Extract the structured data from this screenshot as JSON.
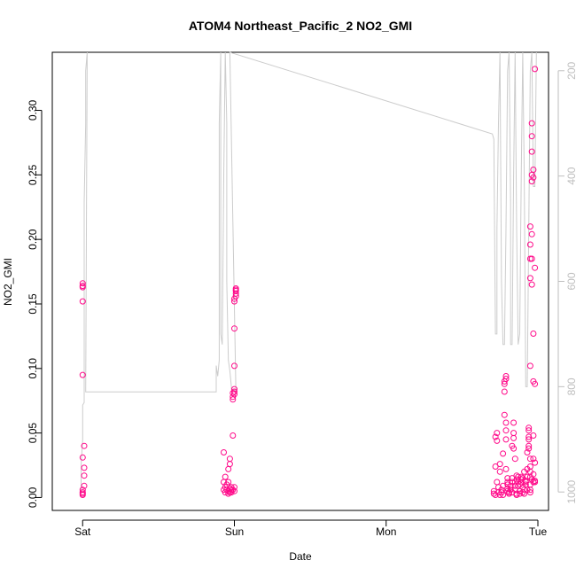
{
  "chart_data": {
    "type": "scatter",
    "title": "ATOM4 Northeast_Pacific_2 NO2_GMI",
    "xlabel": "Date",
    "ylabel": "NO2_GMI",
    "x_ticks": [
      "Sat",
      "Sun",
      "Mon",
      "Tue"
    ],
    "x_range_days": [
      -0.2,
      3.07
    ],
    "y_left": {
      "range": [
        -0.01,
        0.345
      ],
      "ticks": [
        "0.00",
        "0.05",
        "0.10",
        "0.15",
        "0.20",
        "0.25",
        "0.30"
      ]
    },
    "y_right": {
      "range": [
        1035,
        165
      ],
      "reversed": true,
      "ticks": [
        "200",
        "400",
        "600",
        "800",
        "1000"
      ]
    },
    "grid": false,
    "colors": {
      "points": "#ff0a8a",
      "secondary_line": "#cccccc",
      "axis": "#000000",
      "right_axis": "#bebebe"
    },
    "series": [
      {
        "type": "scatter",
        "axis": "left",
        "points": [
          [
            0.0,
            0.166
          ],
          [
            0.0,
            0.164
          ],
          [
            0.0,
            0.163
          ],
          [
            0.0,
            0.152
          ],
          [
            0.0,
            0.095
          ],
          [
            0.01,
            0.04
          ],
          [
            0.0,
            0.031
          ],
          [
            0.01,
            0.023
          ],
          [
            0.01,
            0.017
          ],
          [
            0.01,
            0.009
          ],
          [
            0.0,
            0.006
          ],
          [
            0.0,
            0.004
          ],
          [
            0.0,
            0.003
          ],
          [
            0.0,
            0.002
          ],
          [
            0.93,
            0.035
          ],
          [
            0.94,
            0.016
          ],
          [
            0.93,
            0.012
          ],
          [
            0.94,
            0.008
          ],
          [
            0.93,
            0.006
          ],
          [
            0.94,
            0.004
          ],
          [
            0.95,
            0.01
          ],
          [
            0.95,
            0.006
          ],
          [
            0.96,
            0.003
          ],
          [
            0.96,
            0.012
          ],
          [
            0.96,
            0.022
          ],
          [
            0.97,
            0.026
          ],
          [
            0.97,
            0.03
          ],
          [
            0.97,
            0.004
          ],
          [
            0.98,
            0.008
          ],
          [
            0.98,
            0.006
          ],
          [
            0.99,
            0.048
          ],
          [
            0.99,
            0.076
          ],
          [
            0.99,
            0.078
          ],
          [
            0.99,
            0.081
          ],
          [
            1.0,
            0.08
          ],
          [
            1.0,
            0.082
          ],
          [
            1.0,
            0.084
          ],
          [
            1.0,
            0.102
          ],
          [
            1.0,
            0.131
          ],
          [
            1.0,
            0.152
          ],
          [
            1.0,
            0.154
          ],
          [
            1.01,
            0.156
          ],
          [
            1.01,
            0.158
          ],
          [
            1.01,
            0.16
          ],
          [
            1.01,
            0.161
          ],
          [
            1.01,
            0.162
          ],
          [
            1.0,
            0.008
          ],
          [
            1.0,
            0.005
          ],
          [
            0.99,
            0.006
          ],
          [
            0.98,
            0.004
          ],
          [
            0.97,
            0.007
          ],
          [
            0.96,
            0.005
          ],
          [
            2.71,
            0.005
          ],
          [
            2.71,
            0.003
          ],
          [
            2.72,
            0.002
          ],
          [
            2.72,
            0.024
          ],
          [
            2.72,
            0.047
          ],
          [
            2.73,
            0.05
          ],
          [
            2.73,
            0.044
          ],
          [
            2.73,
            0.012
          ],
          [
            2.74,
            0.008
          ],
          [
            2.74,
            0.004
          ],
          [
            2.75,
            0.002
          ],
          [
            2.75,
            0.026
          ],
          [
            2.75,
            0.02
          ],
          [
            2.76,
            0.004
          ],
          [
            2.76,
            0.006
          ],
          [
            2.77,
            0.009
          ],
          [
            2.77,
            0.002
          ],
          [
            2.77,
            0.034
          ],
          [
            2.78,
            0.09
          ],
          [
            2.78,
            0.088
          ],
          [
            2.78,
            0.082
          ],
          [
            2.78,
            0.064
          ],
          [
            2.79,
            0.092
          ],
          [
            2.79,
            0.094
          ],
          [
            2.79,
            0.058
          ],
          [
            2.79,
            0.052
          ],
          [
            2.79,
            0.045
          ],
          [
            2.79,
            0.022
          ],
          [
            2.8,
            0.015
          ],
          [
            2.8,
            0.012
          ],
          [
            2.8,
            0.01
          ],
          [
            2.8,
            0.007
          ],
          [
            2.8,
            0.005
          ],
          [
            2.81,
            0.004
          ],
          [
            2.81,
            0.003
          ],
          [
            2.82,
            0.009
          ],
          [
            2.82,
            0.006
          ],
          [
            2.83,
            0.004
          ],
          [
            2.83,
            0.012
          ],
          [
            2.83,
            0.015
          ],
          [
            2.83,
            0.04
          ],
          [
            2.84,
            0.05
          ],
          [
            2.84,
            0.058
          ],
          [
            2.84,
            0.046
          ],
          [
            2.84,
            0.038
          ],
          [
            2.85,
            0.03
          ],
          [
            2.85,
            0.012
          ],
          [
            2.85,
            0.009
          ],
          [
            2.85,
            0.006
          ],
          [
            2.86,
            0.003
          ],
          [
            2.86,
            0.002
          ],
          [
            2.86,
            0.014
          ],
          [
            2.86,
            0.017
          ],
          [
            2.87,
            0.016
          ],
          [
            2.87,
            0.012
          ],
          [
            2.87,
            0.009
          ],
          [
            2.88,
            0.005
          ],
          [
            2.88,
            0.003
          ],
          [
            2.88,
            0.01
          ],
          [
            2.89,
            0.014
          ],
          [
            2.89,
            0.016
          ],
          [
            2.89,
            0.012
          ],
          [
            2.9,
            0.008
          ],
          [
            2.9,
            0.004
          ],
          [
            2.9,
            0.015
          ],
          [
            2.91,
            0.02
          ],
          [
            2.91,
            0.006
          ],
          [
            2.91,
            0.003
          ],
          [
            2.92,
            0.012
          ],
          [
            2.92,
            0.013
          ],
          [
            2.92,
            0.01
          ],
          [
            2.93,
            0.006
          ],
          [
            2.93,
            0.016
          ],
          [
            2.93,
            0.022
          ],
          [
            2.93,
            0.035
          ],
          [
            2.94,
            0.045
          ],
          [
            2.94,
            0.047
          ],
          [
            2.94,
            0.04
          ],
          [
            2.94,
            0.038
          ],
          [
            2.94,
            0.052
          ],
          [
            2.94,
            0.054
          ],
          [
            2.95,
            0.03
          ],
          [
            2.95,
            0.024
          ],
          [
            2.95,
            0.02
          ],
          [
            2.95,
            0.016
          ],
          [
            2.95,
            0.01
          ],
          [
            2.95,
            0.006
          ],
          [
            2.95,
            0.004
          ],
          [
            2.95,
            0.102
          ],
          [
            2.95,
            0.17
          ],
          [
            2.95,
            0.185
          ],
          [
            2.95,
            0.21
          ],
          [
            2.95,
            0.196
          ],
          [
            2.96,
            0.29
          ],
          [
            2.96,
            0.28
          ],
          [
            2.96,
            0.268
          ],
          [
            2.96,
            0.25
          ],
          [
            2.96,
            0.245
          ],
          [
            2.96,
            0.204
          ],
          [
            2.96,
            0.185
          ],
          [
            2.96,
            0.165
          ],
          [
            2.96,
            0.014
          ],
          [
            2.97,
            0.254
          ],
          [
            2.97,
            0.248
          ],
          [
            2.97,
            0.127
          ],
          [
            2.97,
            0.09
          ],
          [
            2.97,
            0.048
          ],
          [
            2.97,
            0.03
          ],
          [
            2.97,
            0.018
          ],
          [
            2.97,
            0.012
          ],
          [
            2.98,
            0.178
          ],
          [
            2.98,
            0.332
          ],
          [
            2.98,
            0.088
          ],
          [
            2.98,
            0.027
          ],
          [
            2.98,
            0.013
          ],
          [
            2.98,
            0.012
          ]
        ]
      },
      {
        "type": "line",
        "axis": "right",
        "points": [
          [
            -0.01,
            1000
          ],
          [
            -0.01,
            950
          ],
          [
            0.0,
            900
          ],
          [
            0.0,
            835
          ],
          [
            0.01,
            830
          ],
          [
            0.01,
            800
          ],
          [
            0.01,
            450
          ],
          [
            0.02,
            300
          ],
          [
            0.02,
            200
          ],
          [
            0.03,
            150
          ],
          [
            0.02,
            810
          ],
          [
            0.88,
            810
          ],
          [
            0.88,
            760
          ],
          [
            0.89,
            780
          ],
          [
            0.9,
            750
          ],
          [
            0.9,
            300
          ],
          [
            0.91,
            150
          ],
          [
            0.91,
            700
          ],
          [
            0.92,
            720
          ],
          [
            0.93,
            400
          ],
          [
            0.94,
            150
          ],
          [
            0.95,
            300
          ],
          [
            0.95,
            600
          ],
          [
            0.96,
            750
          ],
          [
            0.97,
            770
          ],
          [
            0.98,
            800
          ],
          [
            0.98,
            805
          ],
          [
            1.0,
            805
          ],
          [
            1.01,
            810
          ],
          [
            0.97,
            160
          ],
          [
            2.7,
            320
          ],
          [
            2.71,
            330
          ],
          [
            2.72,
            700
          ],
          [
            2.73,
            700
          ],
          [
            2.73,
            500
          ],
          [
            2.74,
            300
          ],
          [
            2.75,
            150
          ],
          [
            2.76,
            600
          ],
          [
            2.77,
            720
          ],
          [
            2.78,
            720
          ],
          [
            2.79,
            500
          ],
          [
            2.8,
            200
          ],
          [
            2.81,
            150
          ],
          [
            2.82,
            450
          ],
          [
            2.82,
            720
          ],
          [
            2.83,
            720
          ],
          [
            2.84,
            400
          ],
          [
            2.85,
            150
          ],
          [
            2.86,
            500
          ],
          [
            2.87,
            720
          ],
          [
            2.88,
            700
          ],
          [
            2.89,
            400
          ],
          [
            2.9,
            150
          ],
          [
            2.91,
            400
          ],
          [
            2.92,
            800
          ],
          [
            2.93,
            800
          ],
          [
            2.94,
            500
          ],
          [
            2.95,
            200
          ],
          [
            2.96,
            150
          ],
          [
            2.97,
            420
          ],
          [
            2.98,
            420
          ],
          [
            2.99,
            150
          ]
        ]
      }
    ]
  }
}
